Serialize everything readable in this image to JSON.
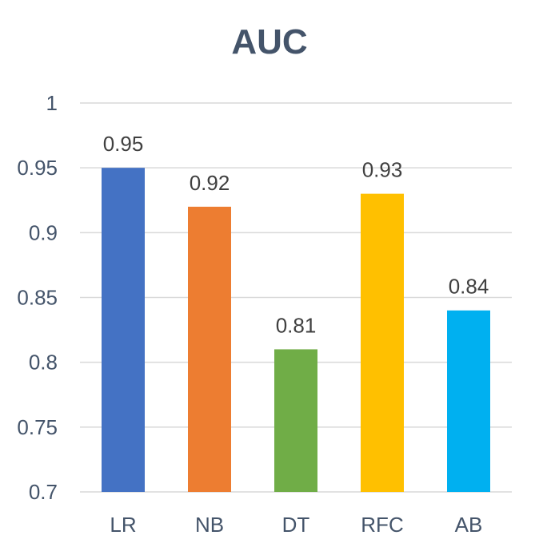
{
  "chart_data": {
    "type": "bar",
    "title": "AUC",
    "categories": [
      "LR",
      "NB",
      "DT",
      "RFC",
      "AB"
    ],
    "values": [
      0.95,
      0.92,
      0.81,
      0.93,
      0.84
    ],
    "value_labels": [
      "0.95",
      "0.92",
      "0.81",
      "0.93",
      "0.84"
    ],
    "bar_colors": [
      "#4472c4",
      "#ed7d31",
      "#70ad47",
      "#ffc000",
      "#00b0f0"
    ],
    "y_ticks": [
      0.7,
      0.75,
      0.8,
      0.85,
      0.9,
      0.95,
      1
    ],
    "y_tick_labels": [
      "0.7",
      "0.75",
      "0.8",
      "0.85",
      "0.9",
      "0.95",
      "1"
    ],
    "ylim": [
      0.7,
      1
    ],
    "xlabel": "",
    "ylabel": "",
    "grid": true,
    "legend": "none",
    "colors": {
      "title": "#44546a",
      "tick_label": "#44546a",
      "data_label": "#404040",
      "gridline": "#d9d9d9"
    }
  }
}
